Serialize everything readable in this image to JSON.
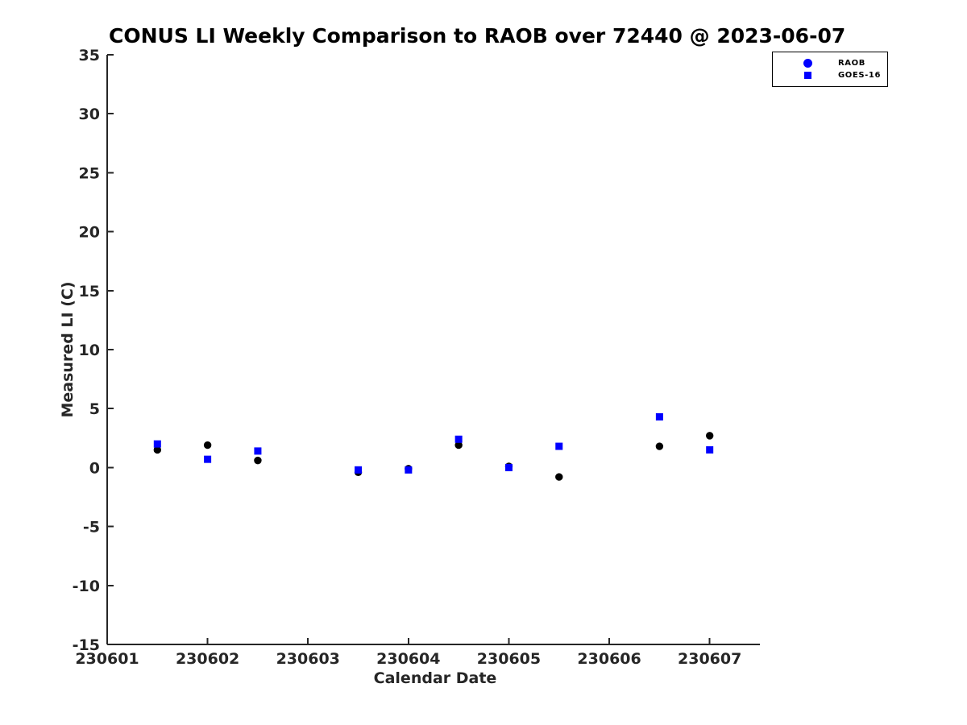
{
  "chart_data": {
    "type": "scatter",
    "title": "CONUS LI Weekly Comparison to RAOB over 72440 @ 2023-06-07",
    "xlabel": "Calendar Date",
    "ylabel": "Measured LI (C)",
    "xlim": [
      230601,
      230607.5
    ],
    "ylim": [
      -15,
      35
    ],
    "xticks": [
      230601,
      230602,
      230603,
      230604,
      230605,
      230606,
      230607
    ],
    "yticks": [
      35,
      30,
      25,
      20,
      15,
      10,
      5,
      0,
      -5,
      -10,
      -15
    ],
    "grid": false,
    "legend": {
      "position": "top-right",
      "entries": [
        "RAOB",
        "GOES-16"
      ]
    },
    "series": [
      {
        "name": "RAOB",
        "marker": "circle",
        "marker_color": "#000000",
        "legend_color": "#0000ff",
        "x": [
          230601.5,
          230602,
          230602.5,
          230603.5,
          230604,
          230604.5,
          230605,
          230605.5,
          230606.5,
          230607
        ],
        "y": [
          1.5,
          1.9,
          0.6,
          -0.4,
          -0.1,
          1.9,
          0.1,
          -0.8,
          1.8,
          2.7
        ]
      },
      {
        "name": "GOES-16",
        "marker": "square",
        "marker_color": "#0000ff",
        "legend_color": "#0000ff",
        "x": [
          230601.5,
          230602,
          230602.5,
          230603.5,
          230604,
          230604.5,
          230605,
          230605.5,
          230606.5,
          230607
        ],
        "y": [
          2.0,
          0.7,
          1.4,
          -0.2,
          -0.2,
          2.4,
          0.0,
          1.8,
          4.3,
          1.5
        ]
      }
    ],
    "style": {
      "background": "#ffffff",
      "axis_color": "#262626",
      "tick_label_color": "#262626",
      "title_color": "#000000"
    }
  }
}
